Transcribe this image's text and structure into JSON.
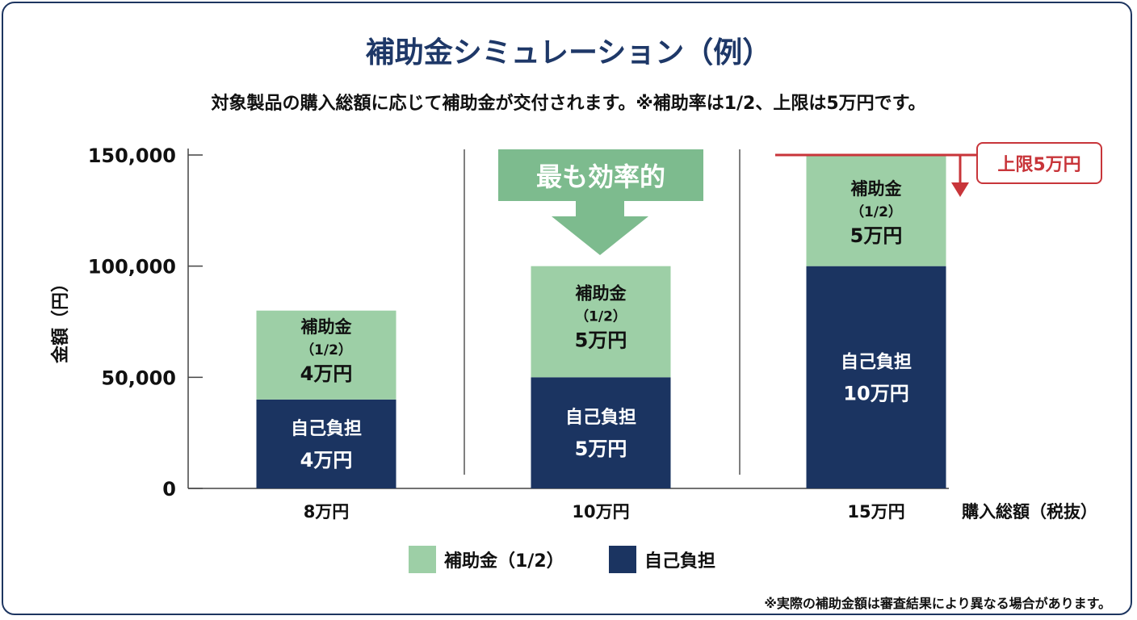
{
  "title": "補助金シミュレーション（例）",
  "subtitle": "対象製品の購入総額に応じて補助金が交付されます。※補助率は1/2、上限は5万円です。",
  "footnote": "※実際の補助金額は審査結果により異なる場合があります。",
  "chart_data": {
    "type": "bar",
    "stacked": true,
    "ylabel": "金額（円）",
    "xlabel": "購入総額（税抜）",
    "ylim": [
      0,
      150000
    ],
    "yticks": [
      "0",
      "50,000",
      "100,000",
      "150,000"
    ],
    "ytick_values": [
      0,
      50000,
      100000,
      150000
    ],
    "categories": [
      "8万円",
      "10万円",
      "15万円"
    ],
    "series": [
      {
        "name": "自己負担",
        "color": "#1b3461",
        "values": [
          40000,
          50000,
          100000
        ],
        "labels": [
          [
            "自己負担",
            "4万円"
          ],
          [
            "自己負担",
            "5万円"
          ],
          [
            "自己負担",
            "10万円"
          ]
        ]
      },
      {
        "name": "補助金（1/2）",
        "color": "#9dcfa6",
        "values": [
          40000,
          50000,
          50000
        ],
        "labels": [
          [
            "補助金",
            "（1/2）",
            "4万円"
          ],
          [
            "補助金",
            "（1/2）",
            "5万円"
          ],
          [
            "補助金",
            "（1/2）",
            "5万円"
          ]
        ]
      }
    ],
    "legend_position": "bottom",
    "annotations": {
      "highlight": {
        "text": "最も効率的",
        "category": "10万円",
        "color": "#7dbb8e"
      },
      "cap": {
        "text": "上限5万円",
        "value": 150000,
        "color": "#c8353a"
      }
    }
  }
}
